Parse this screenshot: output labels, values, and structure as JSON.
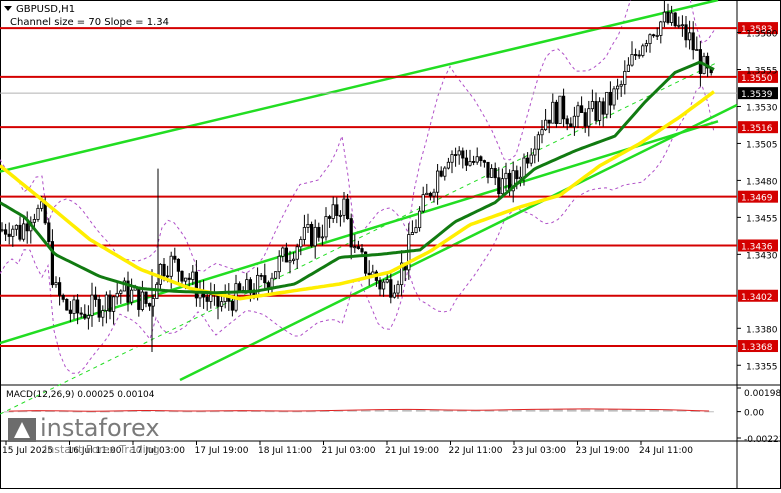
{
  "header": {
    "symbol": "GBPUSD,H1",
    "channel_info": "Channel size = 70 Slope = 1.34"
  },
  "indicator": {
    "macd_label": "MACD(12,26,9) 0.00025 0.00104",
    "macd_ticks": [
      "0.00198",
      "0.00",
      "-0.00221"
    ]
  },
  "watermark": {
    "brand": "instaforex",
    "tagline": "Instant Forex Trading"
  },
  "chart_data": {
    "type": "candlestick",
    "symbol": "GBPUSD",
    "timeframe": "H1",
    "price_range": [
      1.3343,
      1.3602
    ],
    "price_ticks": [
      1.358,
      1.3555,
      1.353,
      1.3505,
      1.348,
      1.3455,
      1.343,
      1.338,
      1.3355
    ],
    "price_tick_labels": [
      "1.3580",
      "1.3555",
      "1.3530",
      "1.3505",
      "1.3480",
      "1.3455",
      "1.3430",
      "1.3380",
      "1.3355"
    ],
    "levels": [
      {
        "value": 1.3583,
        "label": "1.3583"
      },
      {
        "value": 1.355,
        "label": "1.3550"
      },
      {
        "value": 1.3516,
        "label": "1.3516"
      },
      {
        "value": 1.3469,
        "label": "1.3469"
      },
      {
        "value": 1.3436,
        "label": "1.3436"
      },
      {
        "value": 1.3402,
        "label": "1.3402"
      },
      {
        "value": 1.3368,
        "label": "1.3368"
      }
    ],
    "current_price": {
      "value": 1.3539,
      "label": "1.3539"
    },
    "time_labels": [
      "15 Jul 2025",
      "16 Jul 11:00",
      "17 Jul 03:00",
      "17 Jul 19:00",
      "18 Jul 11:00",
      "21 Jul 03:00",
      "21 Jul 19:00",
      "22 Jul 11:00",
      "23 Jul 03:00",
      "23 Jul 19:00",
      "24 Jul 11:00"
    ],
    "close_path": [
      [
        0,
        1.3446
      ],
      [
        10,
        1.345
      ],
      [
        20,
        1.3445
      ],
      [
        32,
        1.346
      ],
      [
        44,
        1.3456
      ],
      [
        55,
        1.3405
      ],
      [
        68,
        1.3392
      ],
      [
        80,
        1.339
      ],
      [
        92,
        1.3394
      ],
      [
        106,
        1.3398
      ],
      [
        120,
        1.3406
      ],
      [
        135,
        1.3402
      ],
      [
        150,
        1.3395
      ],
      [
        158,
        1.342
      ],
      [
        170,
        1.3425
      ],
      [
        185,
        1.3418
      ],
      [
        200,
        1.3404
      ],
      [
        215,
        1.3395
      ],
      [
        228,
        1.3399
      ],
      [
        245,
        1.3404
      ],
      [
        262,
        1.341
      ],
      [
        280,
        1.3425
      ],
      [
        300,
        1.344
      ],
      [
        318,
        1.3445
      ],
      [
        333,
        1.3455
      ],
      [
        343,
        1.3466
      ],
      [
        355,
        1.343
      ],
      [
        368,
        1.342
      ],
      [
        380,
        1.341
      ],
      [
        392,
        1.341
      ],
      [
        405,
        1.3425
      ],
      [
        415,
        1.345
      ],
      [
        425,
        1.3465
      ],
      [
        437,
        1.3485
      ],
      [
        449,
        1.35
      ],
      [
        462,
        1.3496
      ],
      [
        475,
        1.3492
      ],
      [
        490,
        1.3485
      ],
      [
        505,
        1.3476
      ],
      [
        515,
        1.348
      ],
      [
        525,
        1.3495
      ],
      [
        538,
        1.3515
      ],
      [
        548,
        1.3525
      ],
      [
        560,
        1.3528
      ],
      [
        575,
        1.3522
      ],
      [
        590,
        1.3524
      ],
      [
        605,
        1.353
      ],
      [
        620,
        1.3542
      ],
      [
        632,
        1.356
      ],
      [
        642,
        1.3575
      ],
      [
        652,
        1.3583
      ],
      [
        663,
        1.3588
      ],
      [
        675,
        1.3585
      ],
      [
        690,
        1.3575
      ],
      [
        700,
        1.356
      ],
      [
        710,
        1.3548
      ],
      [
        714,
        1.3539
      ]
    ],
    "sma_green": [
      [
        0,
        1.3465
      ],
      [
        25,
        1.3455
      ],
      [
        55,
        1.343
      ],
      [
        100,
        1.3415
      ],
      [
        140,
        1.3407
      ],
      [
        175,
        1.3405
      ],
      [
        215,
        1.3404
      ],
      [
        255,
        1.3405
      ],
      [
        295,
        1.341
      ],
      [
        340,
        1.3428
      ],
      [
        380,
        1.343
      ],
      [
        420,
        1.3433
      ],
      [
        455,
        1.3452
      ],
      [
        495,
        1.3465
      ],
      [
        535,
        1.3488
      ],
      [
        575,
        1.35
      ],
      [
        615,
        1.351
      ],
      [
        645,
        1.3533
      ],
      [
        675,
        1.3553
      ],
      [
        700,
        1.356
      ],
      [
        714,
        1.3555
      ]
    ],
    "sma_yellow": [
      [
        0,
        1.349
      ],
      [
        40,
        1.3468
      ],
      [
        90,
        1.344
      ],
      [
        140,
        1.342
      ],
      [
        190,
        1.3407
      ],
      [
        240,
        1.34
      ],
      [
        290,
        1.3405
      ],
      [
        340,
        1.341
      ],
      [
        390,
        1.3418
      ],
      [
        430,
        1.3432
      ],
      [
        470,
        1.345
      ],
      [
        520,
        1.3462
      ],
      [
        560,
        1.347
      ],
      [
        600,
        1.349
      ],
      [
        640,
        1.3505
      ],
      [
        680,
        1.3523
      ],
      [
        714,
        1.354
      ]
    ],
    "macd_histogram_range": [
      -0.00221,
      0.00198
    ],
    "macd_histogram": [
      2e-05,
      4e-05,
      6e-05,
      5e-05,
      4e-05,
      2e-05,
      1e-05,
      2e-05,
      4e-05,
      6e-05,
      7e-05,
      6e-05,
      4e-05,
      3e-05,
      3e-05,
      4e-05,
      5e-05,
      6e-05,
      5e-05,
      4e-05,
      3e-05,
      3e-05,
      4e-05,
      6e-05,
      8e-05,
      0.0001,
      0.00012,
      0.00014,
      0.00015,
      0.00016,
      0.00015,
      0.00013,
      0.00011,
      0.0001,
      9e-05,
      0.0001,
      0.00012,
      0.00014,
      0.00016,
      0.00017,
      0.00018,
      0.00019,
      0.0002,
      0.00019,
      0.00018,
      0.00017,
      0.00016,
      0.00015,
      0.00013,
      0.0001,
      6e-05,
      3e-05
    ]
  }
}
